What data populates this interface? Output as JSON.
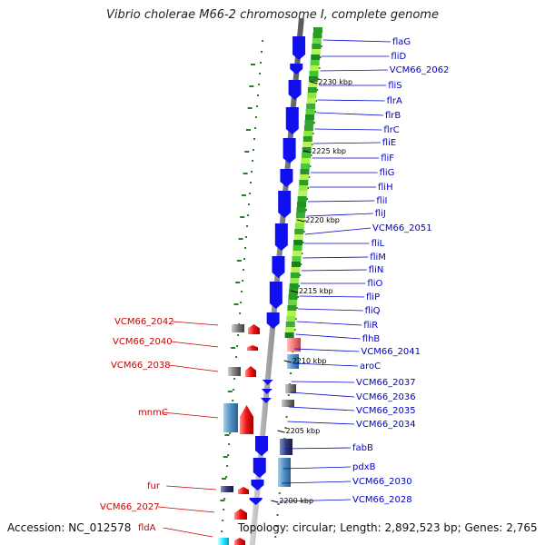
{
  "title": "Vibrio cholerae M66-2 chromosome I, complete genome",
  "footer": {
    "accession": "Accession: NC_012578",
    "topology": "Topology: circular; Length: 2,892,523 bp; Genes: 2,765"
  },
  "colors": {
    "forward_label": "#0000cc",
    "reverse_label": "#cc0000",
    "forward_gene": "#1010ee",
    "reverse_gene": "#ee1111",
    "backbone": "#888888",
    "track_dots": "#2a7a2a"
  },
  "ticks": [
    "2230 kbp",
    "2225 kbp",
    "2220 kbp",
    "2215 kbp",
    "2210 kbp",
    "2205 kbp",
    "2200 kbp"
  ],
  "right_labels": [
    "flaG",
    "fliD",
    "VCM66_2062",
    "fliS",
    "flrA",
    "flrB",
    "flrC",
    "fliE",
    "fliF",
    "fliG",
    "fliH",
    "fliI",
    "fliJ",
    "VCM66_2051",
    "fliL",
    "fliM",
    "fliN",
    "fliO",
    "fliP",
    "fliQ",
    "fliR",
    "flhB",
    "VCM66_2041",
    "aroC",
    "VCM66_2037",
    "VCM66_2036",
    "VCM66_2035",
    "VCM66_2034",
    "fabB",
    "pdxB",
    "VCM66_2030",
    "VCM66_2028"
  ],
  "left_labels": [
    "VCM66_2042",
    "VCM66_2040",
    "VCM66_2038",
    "mnmC",
    "fur",
    "VCM66_2027",
    "fldA"
  ]
}
